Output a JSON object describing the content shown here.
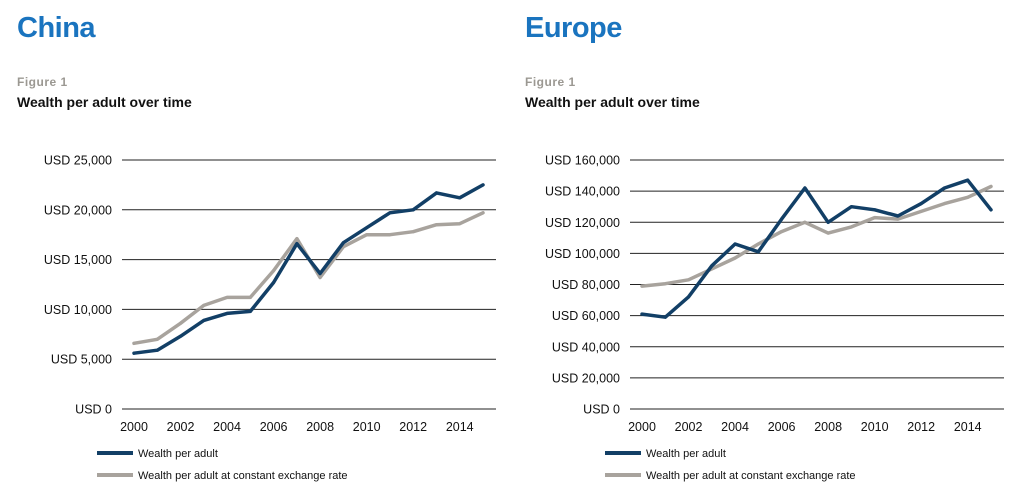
{
  "chart_data": [
    {
      "type": "line",
      "region_title": "China",
      "figure_label": "Figure 1",
      "title": "Wealth per adult over time",
      "xlabel": "",
      "ylabel": "",
      "x": [
        2000,
        2001,
        2002,
        2003,
        2004,
        2005,
        2006,
        2007,
        2008,
        2009,
        2010,
        2011,
        2012,
        2013,
        2014,
        2015
      ],
      "x_ticks": [
        "2000",
        "2002",
        "2004",
        "2006",
        "2008",
        "2010",
        "2012",
        "2014"
      ],
      "y_ticks": [
        "USD 0",
        "USD 5,000",
        "USD 10,000",
        "USD 15,000",
        "USD 20,000",
        "USD 25,000"
      ],
      "ylim": [
        0,
        25000
      ],
      "grid": true,
      "legend_position": "bottom",
      "series": [
        {
          "name": "Wealth per adult",
          "color": "#123f66",
          "values": [
            5600,
            5900,
            7300,
            8900,
            9600,
            9800,
            12700,
            16600,
            13600,
            16700,
            18200,
            19700,
            20000,
            21700,
            21200,
            22500
          ]
        },
        {
          "name": "Wealth per adult at constant exchange rate",
          "color": "#a8a39d",
          "values": [
            6600,
            7000,
            8600,
            10400,
            11200,
            11200,
            13900,
            17100,
            13200,
            16300,
            17500,
            17500,
            17800,
            18500,
            18600,
            19700
          ]
        }
      ]
    },
    {
      "type": "line",
      "region_title": "Europe",
      "figure_label": "Figure 1",
      "title": "Wealth per adult over time",
      "xlabel": "",
      "ylabel": "",
      "x": [
        2000,
        2001,
        2002,
        2003,
        2004,
        2005,
        2006,
        2007,
        2008,
        2009,
        2010,
        2011,
        2012,
        2013,
        2014,
        2015
      ],
      "x_ticks": [
        "2000",
        "2002",
        "2004",
        "2006",
        "2008",
        "2010",
        "2012",
        "2014"
      ],
      "y_ticks": [
        "USD 0",
        "USD 20,000",
        "USD 40,000",
        "USD 60,000",
        "USD 80,000",
        "USD 100,000",
        "USD 120,000",
        "USD 140,000",
        "USD 160,000"
      ],
      "ylim": [
        0,
        160000
      ],
      "grid": true,
      "legend_position": "bottom",
      "series": [
        {
          "name": "Wealth per adult",
          "color": "#123f66",
          "values": [
            61000,
            59000,
            72000,
            92000,
            106000,
            101000,
            122000,
            142000,
            120000,
            130000,
            128000,
            124000,
            132000,
            142000,
            147000,
            128000
          ]
        },
        {
          "name": "Wealth per adult at constant exchange rate",
          "color": "#a8a39d",
          "values": [
            79000,
            80500,
            83000,
            90000,
            97000,
            106000,
            114000,
            120000,
            113000,
            117000,
            123000,
            122000,
            127000,
            132000,
            136000,
            143000
          ]
        }
      ]
    }
  ]
}
